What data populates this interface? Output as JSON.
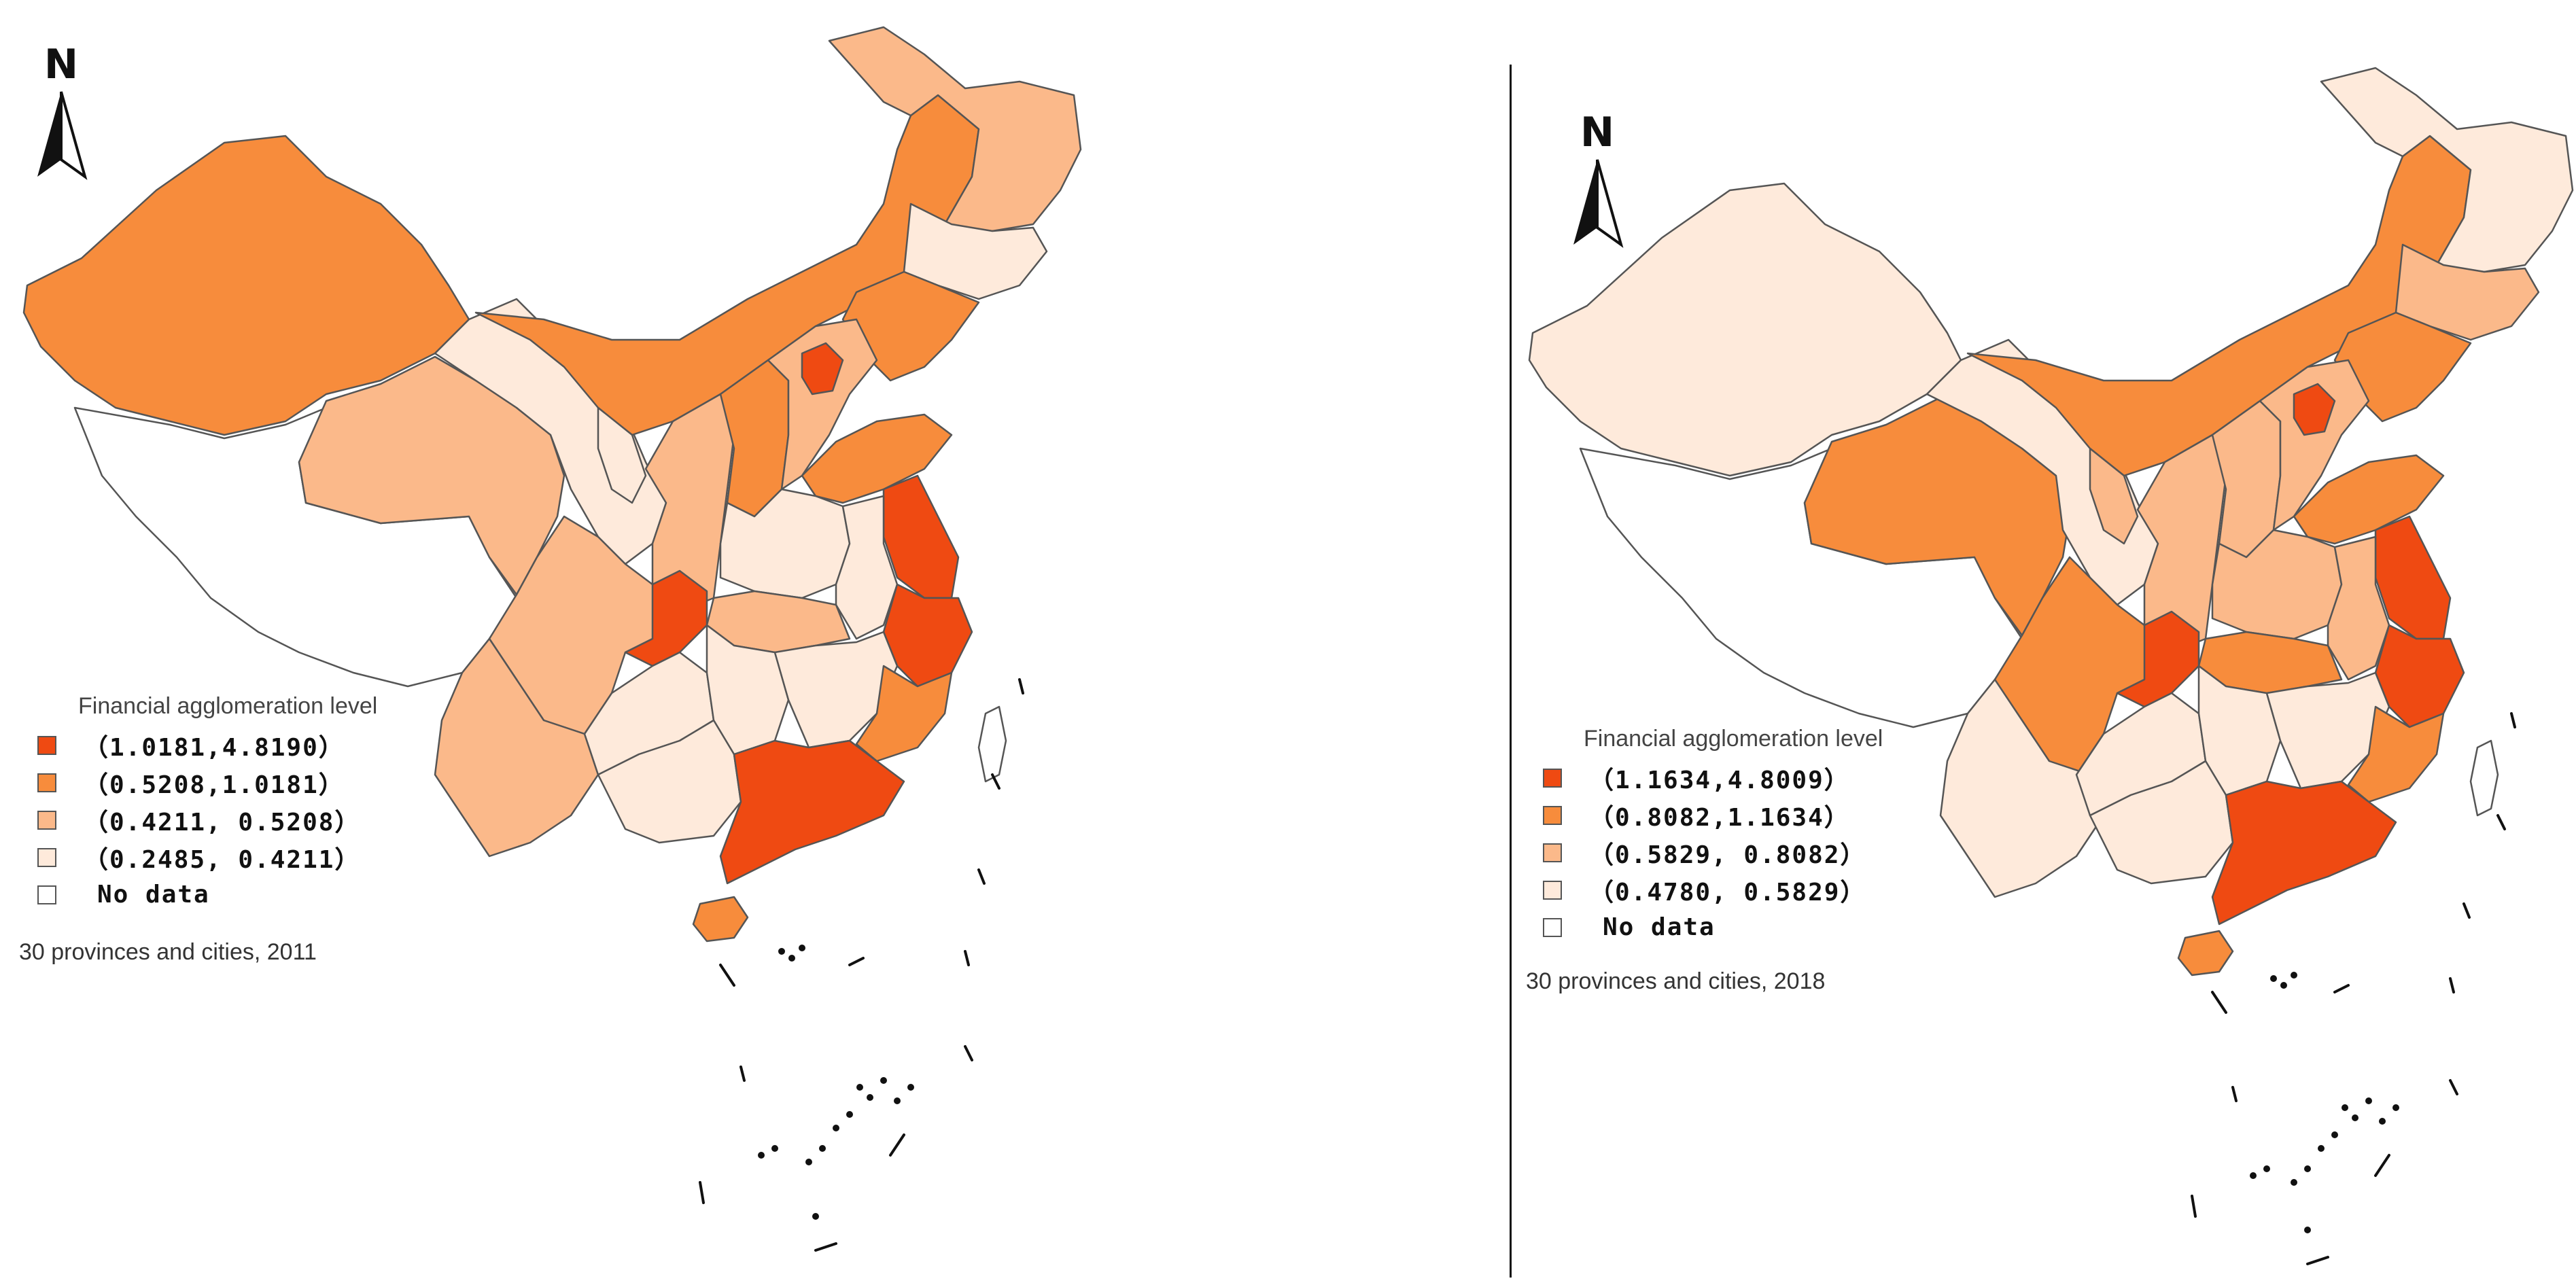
{
  "maps": [
    {
      "year": "2011",
      "north_label": "N",
      "legend_title": "Financial agglomeration level",
      "legend": [
        {
          "label": "（1.0181,4.8190）",
          "color": "#ef4a12"
        },
        {
          "label": "（0.5208,1.0181）",
          "color": "#f78c3c"
        },
        {
          "label": "（0.4211, 0.5208）",
          "color": "#fbb98a"
        },
        {
          "label": "（0.2485, 0.4211）",
          "color": "#feeadb"
        },
        {
          "label": "No data",
          "color": "#ffffff"
        }
      ],
      "caption": "30 provinces and cities, 2011"
    },
    {
      "year": "2018",
      "north_label": "N",
      "legend_title": "Financial agglomeration level",
      "legend": [
        {
          "label": "（1.1634,4.8009）",
          "color": "#ef4a12"
        },
        {
          "label": "（0.8082,1.1634）",
          "color": "#f78c3c"
        },
        {
          "label": "（0.5829, 0.8082）",
          "color": "#fbb98a"
        },
        {
          "label": "（0.4780, 0.5829）",
          "color": "#feeadb"
        },
        {
          "label": "No data",
          "color": "#ffffff"
        }
      ],
      "caption": "30 provinces and cities, 2018"
    }
  ]
}
